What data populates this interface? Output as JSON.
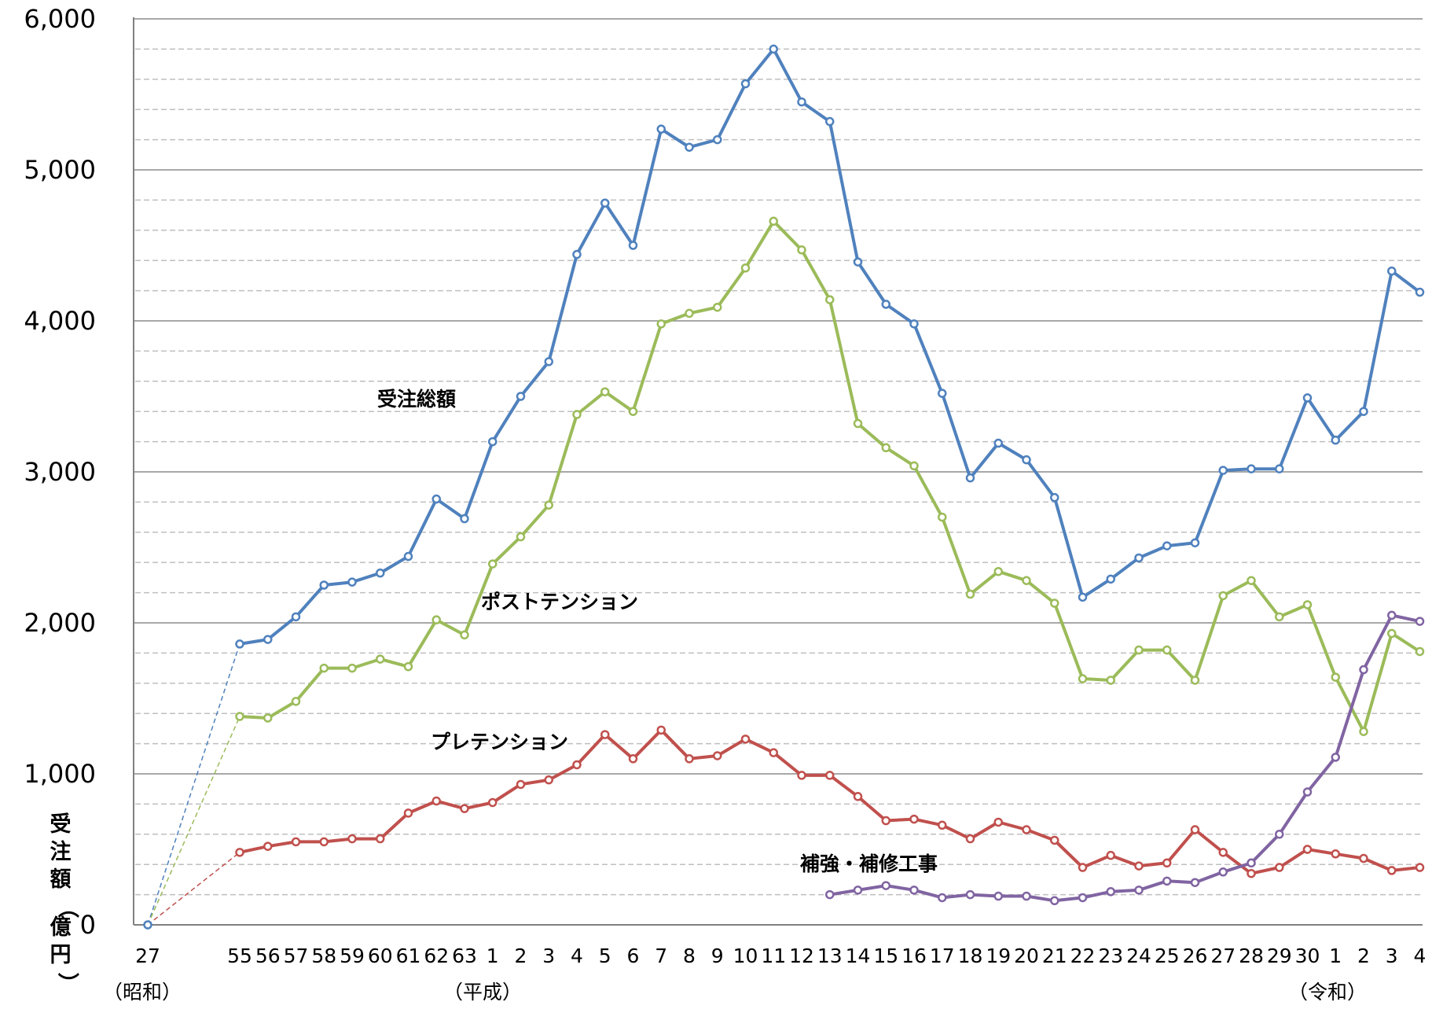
{
  "chart_data": {
    "type": "line",
    "ylabel": "受注額（億円）",
    "ylim": [
      0,
      6000
    ],
    "ytick_labels": [
      "0",
      "1,000",
      "2,000",
      "3,000",
      "4,000",
      "5,000",
      "6,000"
    ],
    "grid": true,
    "categories": [
      "27",
      "55",
      "56",
      "57",
      "58",
      "59",
      "60",
      "61",
      "62",
      "63",
      "1",
      "2",
      "3",
      "4",
      "5",
      "6",
      "7",
      "8",
      "9",
      "10",
      "11",
      "12",
      "13",
      "14",
      "15",
      "16",
      "17",
      "18",
      "19",
      "20",
      "21",
      "22",
      "23",
      "24",
      "25",
      "26",
      "27",
      "28",
      "29",
      "30",
      "1",
      "2",
      "3",
      "4"
    ],
    "era_labels": [
      "（昭和）",
      "（平成）",
      "（令和）"
    ],
    "series": [
      {
        "name": "受注総額",
        "color": "#4f81bd",
        "values": [
          0,
          1860,
          1890,
          2040,
          2250,
          2270,
          2330,
          2440,
          2820,
          2690,
          3200,
          3500,
          3730,
          4440,
          4780,
          4500,
          5270,
          5150,
          5200,
          5570,
          5800,
          5450,
          5320,
          4390,
          4110,
          3980,
          3520,
          2960,
          3190,
          3080,
          2830,
          2170,
          2290,
          2430,
          2510,
          2530,
          3010,
          3020,
          3020,
          3490,
          3210,
          3400,
          4330,
          4190
        ]
      },
      {
        "name": "ポストテンション",
        "color": "#9bbb59",
        "values": [
          0,
          1380,
          1370,
          1480,
          1700,
          1700,
          1760,
          1710,
          2020,
          1920,
          2390,
          2570,
          2780,
          3380,
          3530,
          3400,
          3980,
          4050,
          4090,
          4350,
          4660,
          4470,
          4140,
          3320,
          3160,
          3040,
          2700,
          2190,
          2340,
          2280,
          2130,
          1630,
          1620,
          1820,
          1820,
          1620,
          2180,
          2280,
          2040,
          2120,
          1640,
          1280,
          1930,
          1810
        ]
      },
      {
        "name": "プレテンション",
        "color": "#c0504d",
        "values": [
          0,
          480,
          520,
          550,
          550,
          570,
          570,
          740,
          820,
          770,
          810,
          930,
          960,
          1060,
          1260,
          1100,
          1290,
          1100,
          1120,
          1230,
          1140,
          990,
          990,
          850,
          690,
          700,
          660,
          570,
          680,
          630,
          560,
          380,
          460,
          390,
          410,
          630,
          480,
          340,
          380,
          500,
          470,
          440,
          360,
          380
        ]
      },
      {
        "name": "補強・補修工事",
        "color": "#8064a2",
        "values": [
          null,
          null,
          null,
          null,
          null,
          null,
          null,
          null,
          null,
          null,
          null,
          null,
          null,
          null,
          null,
          null,
          null,
          null,
          null,
          null,
          null,
          null,
          200,
          230,
          260,
          230,
          180,
          200,
          190,
          190,
          160,
          180,
          220,
          230,
          290,
          280,
          350,
          410,
          600,
          880,
          1110,
          1690,
          2050,
          2010
        ]
      }
    ]
  }
}
